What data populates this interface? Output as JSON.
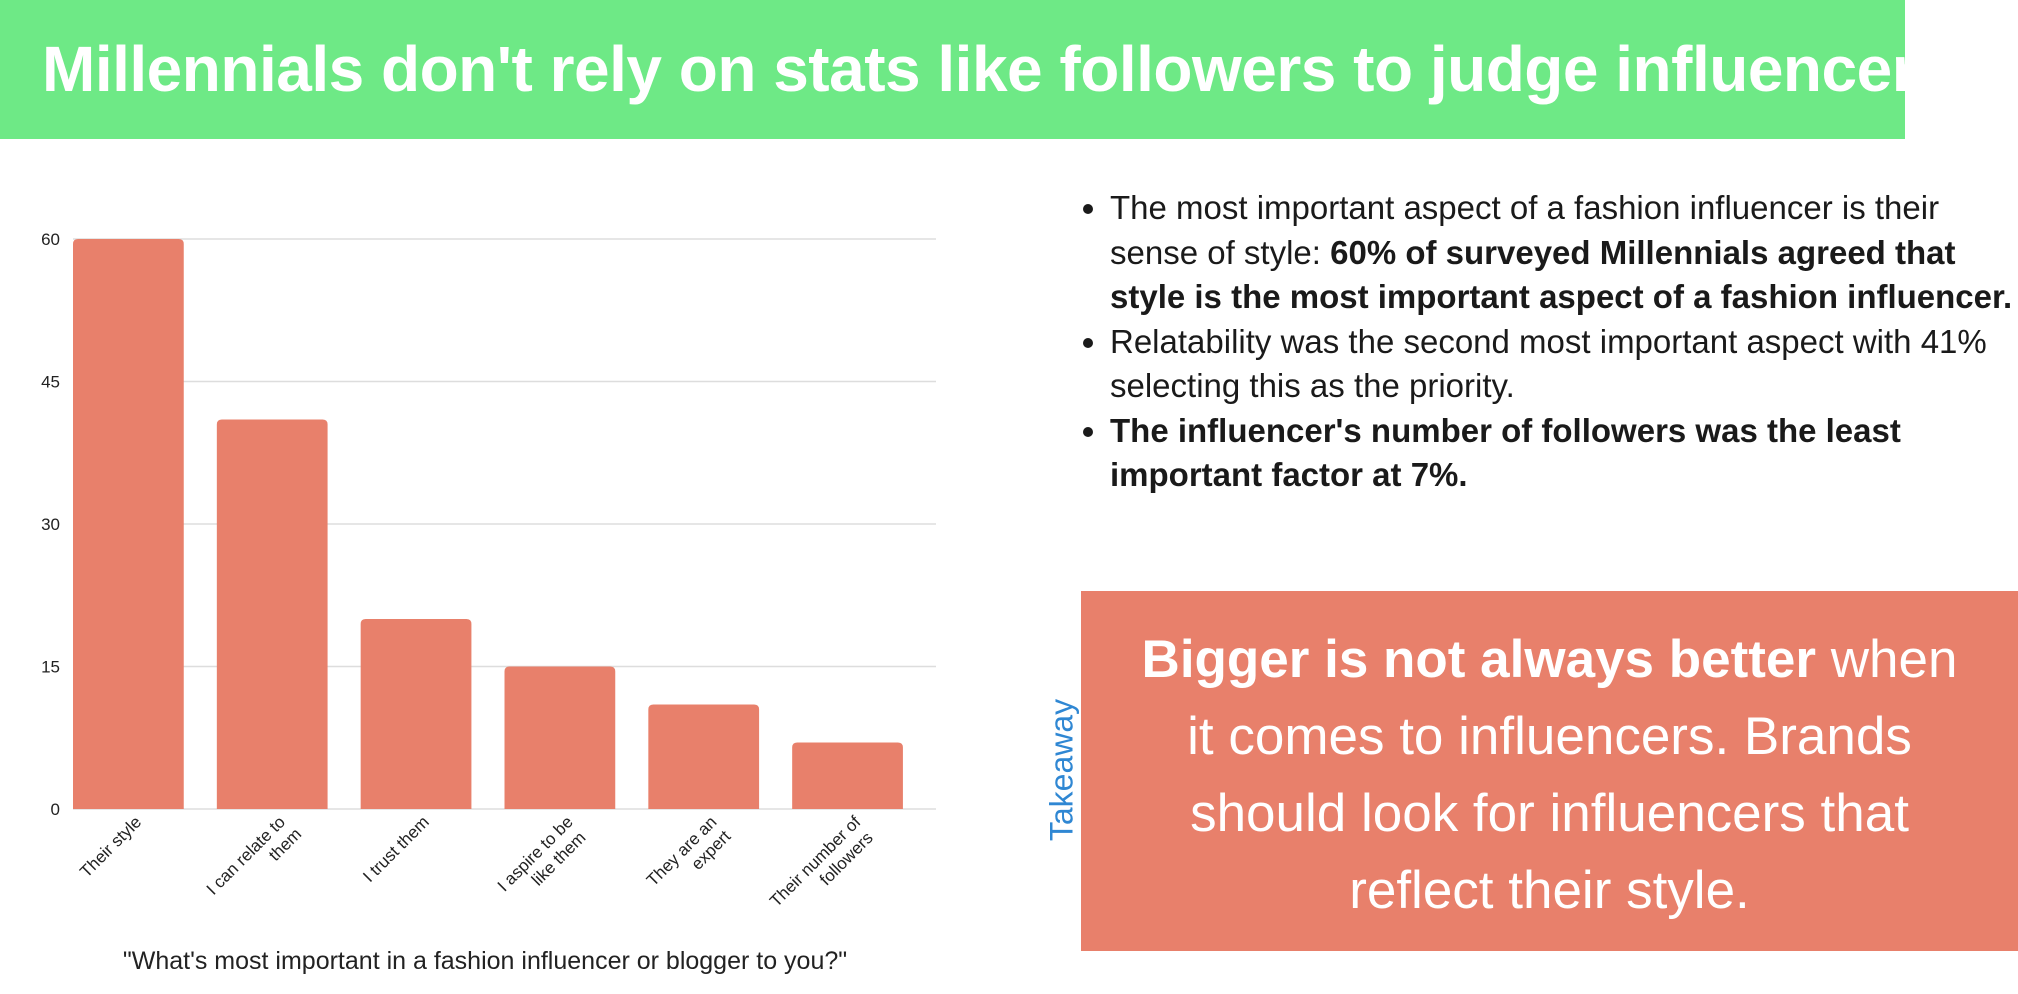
{
  "header": {
    "title": "Millennials don't rely on stats like followers to judge influencers"
  },
  "chart_data": {
    "type": "bar",
    "categories": [
      [
        "Their style"
      ],
      [
        "I can relate to",
        "them"
      ],
      [
        "I trust them"
      ],
      [
        "I aspire to be",
        "like them"
      ],
      [
        "They are an",
        "expert"
      ],
      [
        "Their number of",
        "followers"
      ]
    ],
    "values": [
      60,
      41,
      20,
      15,
      11,
      7
    ],
    "ylim": [
      0,
      60
    ],
    "yticks": [
      0,
      15,
      30,
      45,
      60
    ],
    "grid": true,
    "legend": "none",
    "xlabel": "\"What's most important in a fashion influencer or blogger to you?\"",
    "colors": {
      "bar": "#e8806b",
      "grid": "#dddddd"
    }
  },
  "bullets": [
    {
      "parts": [
        {
          "text": "The most important aspect of a fashion influencer is their sense of style: ",
          "bold": false
        },
        {
          "text": "60% of surveyed Millennials agreed that style is the most important aspect of a fashion influencer.",
          "bold": true
        }
      ]
    },
    {
      "parts": [
        {
          "text": "Relatability was the second most important aspect with 41% selecting this as the priority.",
          "bold": false
        }
      ]
    },
    {
      "parts": [
        {
          "text": "The influencer's number of followers was the least important factor at 7%.",
          "bold": true
        }
      ]
    }
  ],
  "takeaway": {
    "label": "Takeaway",
    "bold_text": "Bigger is not always better",
    "rest_text": " when it comes to influencers. Brands should look for influencers that reflect their style."
  },
  "colors": {
    "title_bg": "#6ee986",
    "accent": "#e8806b",
    "takeaway_label": "#2f87d3"
  }
}
